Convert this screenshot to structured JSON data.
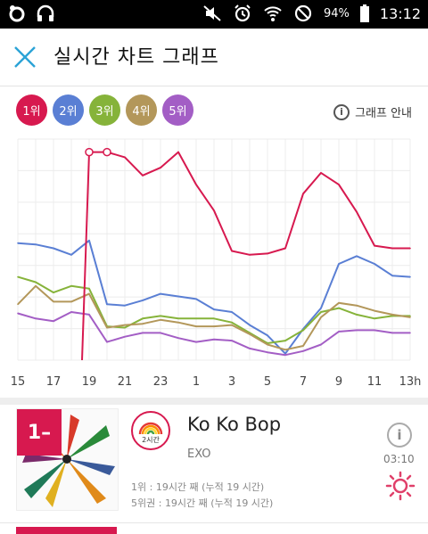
{
  "status_bar": {
    "battery": "94%",
    "time": "13:12"
  },
  "header": {
    "title": "실시간 차트 그래프"
  },
  "legend": {
    "ranks": [
      {
        "label": "1위",
        "color": "#d7194f"
      },
      {
        "label": "2위",
        "color": "#5a7fd4"
      },
      {
        "label": "3위",
        "color": "#86b33a"
      },
      {
        "label": "4위",
        "color": "#b3975a"
      },
      {
        "label": "5위",
        "color": "#a35ec5"
      }
    ],
    "guide_label": "그래프 안내"
  },
  "chart_data": {
    "type": "line",
    "x": [
      "15",
      "16",
      "17",
      "18",
      "19",
      "20",
      "21",
      "22",
      "23",
      "0",
      "1",
      "2",
      "3",
      "4",
      "5",
      "6",
      "7",
      "8",
      "9",
      "10",
      "11",
      "12",
      "13h"
    ],
    "x_tick_labels": [
      "15",
      "17",
      "19",
      "21",
      "23",
      "1",
      "3",
      "5",
      "7",
      "9",
      "11",
      "13h"
    ],
    "y_inverted": true,
    "grid": true,
    "series": [
      {
        "name": "1위",
        "color": "#d7194f",
        "values": [
          null,
          null,
          null,
          null,
          1,
          1,
          1.4,
          2.8,
          2.2,
          1,
          3.5,
          5.5,
          8.6,
          8.9,
          8.8,
          8.4,
          4.2,
          2.6,
          3.5,
          5.6,
          8.2,
          8.4,
          8.4
        ]
      },
      {
        "name": "2위",
        "color": "#5a7fd4",
        "values": [
          8,
          8.1,
          8.4,
          8.9,
          7.8,
          12.7,
          12.8,
          12.4,
          11.9,
          12.1,
          12.3,
          13.1,
          13.3,
          14.3,
          15.1,
          16.5,
          14.6,
          13,
          9.6,
          9,
          9.6,
          10.5,
          10.6
        ]
      },
      {
        "name": "3위",
        "color": "#86b33a",
        "values": [
          10.6,
          11,
          11.8,
          11.3,
          11.5,
          14.4,
          14.5,
          13.8,
          13.6,
          13.8,
          13.8,
          13.8,
          14.1,
          14.9,
          15.7,
          15.5,
          14.7,
          13.3,
          13,
          13.5,
          13.8,
          13.6,
          13.6
        ]
      },
      {
        "name": "4위",
        "color": "#b3975a",
        "values": [
          12.7,
          11.3,
          12.5,
          12.5,
          11.9,
          14.5,
          14.3,
          14.2,
          13.9,
          14.1,
          14.4,
          14.4,
          14.3,
          15,
          15.8,
          16.2,
          15.9,
          13.7,
          12.6,
          12.8,
          13.2,
          13.5,
          13.7
        ]
      },
      {
        "name": "5위",
        "color": "#a35ec5",
        "values": [
          13.4,
          13.8,
          14,
          13.3,
          13.5,
          15.6,
          15.2,
          14.9,
          14.9,
          15.3,
          15.6,
          15.4,
          15.5,
          16.1,
          16.4,
          16.6,
          16.3,
          15.8,
          14.8,
          14.7,
          14.7,
          14.9,
          14.9
        ]
      }
    ]
  },
  "song": {
    "rank": "1",
    "rank_change": "–",
    "badge_label": "2시간",
    "title": "Ko Ko Bop",
    "artist": "EXO",
    "stat1": "1위 : 19시간 째 (누적 19 시간)",
    "stat2": "5위권 : 19시간 째 (누적 19 시간)",
    "time": "03:10"
  }
}
